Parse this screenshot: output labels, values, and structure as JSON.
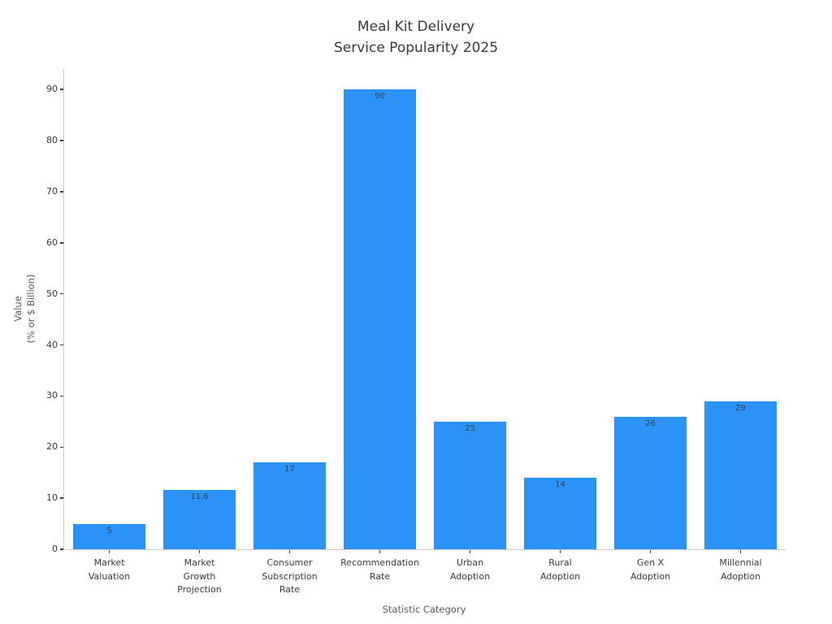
{
  "chart_data": {
    "type": "bar",
    "title": "Meal Kit Delivery\nService Popularity 2025",
    "xlabel": "Statistic Category",
    "ylabel": "Value\n(% or $ Billion)",
    "categories": [
      "Market\nValuation",
      "Market\nGrowth\nProjection",
      "Consumer\nSubscription\nRate",
      "Recommendation\nRate",
      "Urban\nAdoption",
      "Rural\nAdoption",
      "Gen X\nAdoption",
      "Millennial\nAdoption"
    ],
    "values": [
      5,
      11.6,
      17,
      90,
      25,
      14,
      26,
      29
    ],
    "bar_value_labels": [
      "5",
      "11.6",
      "17",
      "90",
      "25",
      "14",
      "26",
      "29"
    ],
    "yticks": [
      0,
      10,
      20,
      30,
      40,
      50,
      60,
      70,
      80,
      90
    ],
    "ylim": [
      0,
      94
    ],
    "bar_color": "#2B92F8",
    "bar_width_fraction": 0.8,
    "grid": false,
    "legend_position": "none",
    "colors": {
      "title_text": "#3a3a3a",
      "tick_text": "#3a3a3a",
      "axis_label_text": "#5a5a5a",
      "bar_value_text": "#39424b",
      "spine": "#c9c9c9",
      "background": "#ffffff"
    }
  }
}
